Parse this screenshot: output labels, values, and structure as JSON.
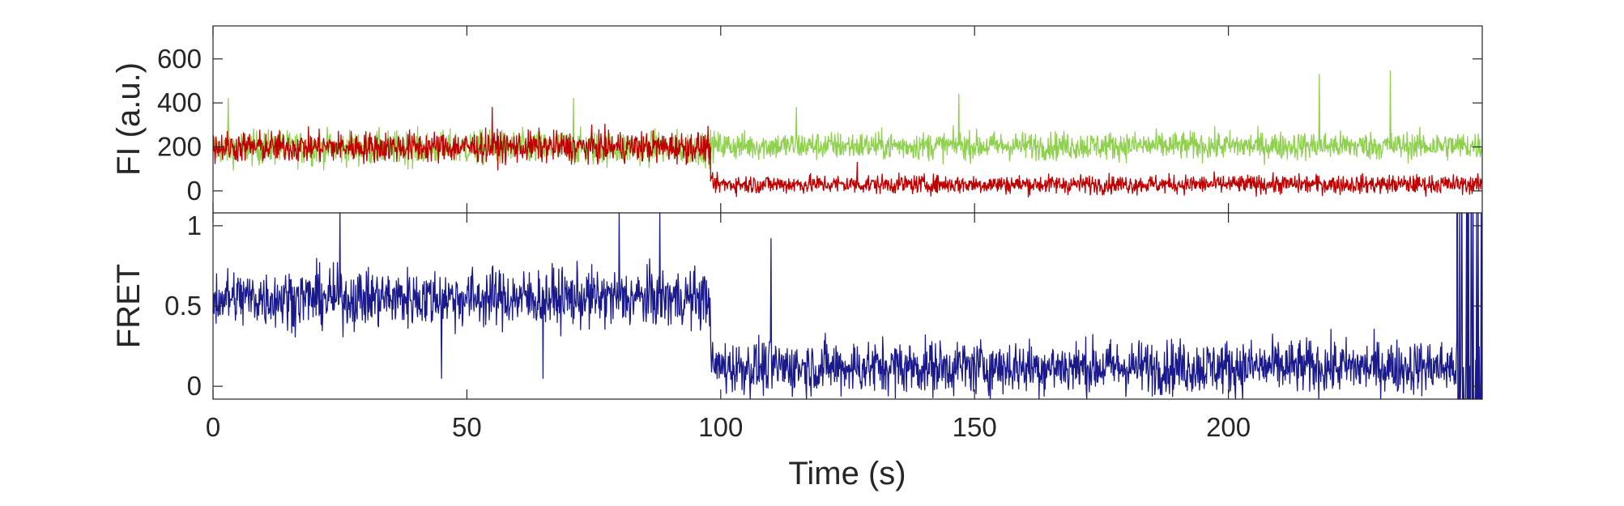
{
  "chart_data": [
    {
      "type": "line",
      "title": "",
      "xlabel": "",
      "ylabel": "FI (a.u.)",
      "xlim": [
        0,
        250
      ],
      "ylim": [
        -100,
        750
      ],
      "xticks": [
        0,
        50,
        100,
        150,
        200
      ],
      "yticks": [
        0,
        200,
        400,
        600
      ],
      "ytick_labels": [
        "0",
        "200",
        "400",
        "600"
      ],
      "grid": false,
      "legend": "none",
      "series": [
        {
          "color": "#8fd14f",
          "segments": [
            {
              "t_start": 0,
              "t_end": 98,
              "mean": 195,
              "noise": 55
            },
            {
              "t_start": 98,
              "t_end": 250,
              "mean": 205,
              "noise": 45
            }
          ],
          "spikes": [
            [
              3,
              420
            ],
            [
              71,
              420
            ],
            [
              115,
              380
            ],
            [
              147,
              440
            ],
            [
              218,
              530
            ],
            [
              232,
              545
            ]
          ]
        },
        {
          "color": "#c00000",
          "segments": [
            {
              "t_start": 0,
              "t_end": 98,
              "mean": 200,
              "noise": 50
            },
            {
              "t_start": 98,
              "t_end": 250,
              "mean": 30,
              "noise": 30
            }
          ],
          "spikes": [
            [
              55,
              380
            ],
            [
              127,
              130
            ]
          ]
        }
      ]
    },
    {
      "type": "line",
      "title": "",
      "xlabel": "Time (s)",
      "ylabel": "FRET",
      "xlim": [
        0,
        250
      ],
      "ylim": [
        -0.08,
        1.08
      ],
      "xticks": [
        0,
        50,
        100,
        150,
        200
      ],
      "xtick_labels": [
        "0",
        "50",
        "100",
        "150",
        "200"
      ],
      "yticks": [
        0,
        0.5,
        1
      ],
      "ytick_labels": [
        "0",
        "0.5",
        "1"
      ],
      "grid": false,
      "legend": "none",
      "series": [
        {
          "color": "#1a1a8c",
          "segments": [
            {
              "t_start": 0,
              "t_end": 98,
              "mean": 0.55,
              "noise": 0.13
            },
            {
              "t_start": 98,
              "t_end": 245,
              "mean": 0.12,
              "noise": 0.12
            }
          ],
          "spikes": [
            [
              25,
              1.08
            ],
            [
              45,
              0.05
            ],
            [
              65,
              0.05
            ],
            [
              80,
              1.08
            ],
            [
              88,
              1.08
            ],
            [
              110,
              0.92
            ]
          ],
          "tail": {
            "t_start": 245,
            "t_end": 250,
            "low": -0.08,
            "high": 1.08
          }
        }
      ]
    }
  ]
}
